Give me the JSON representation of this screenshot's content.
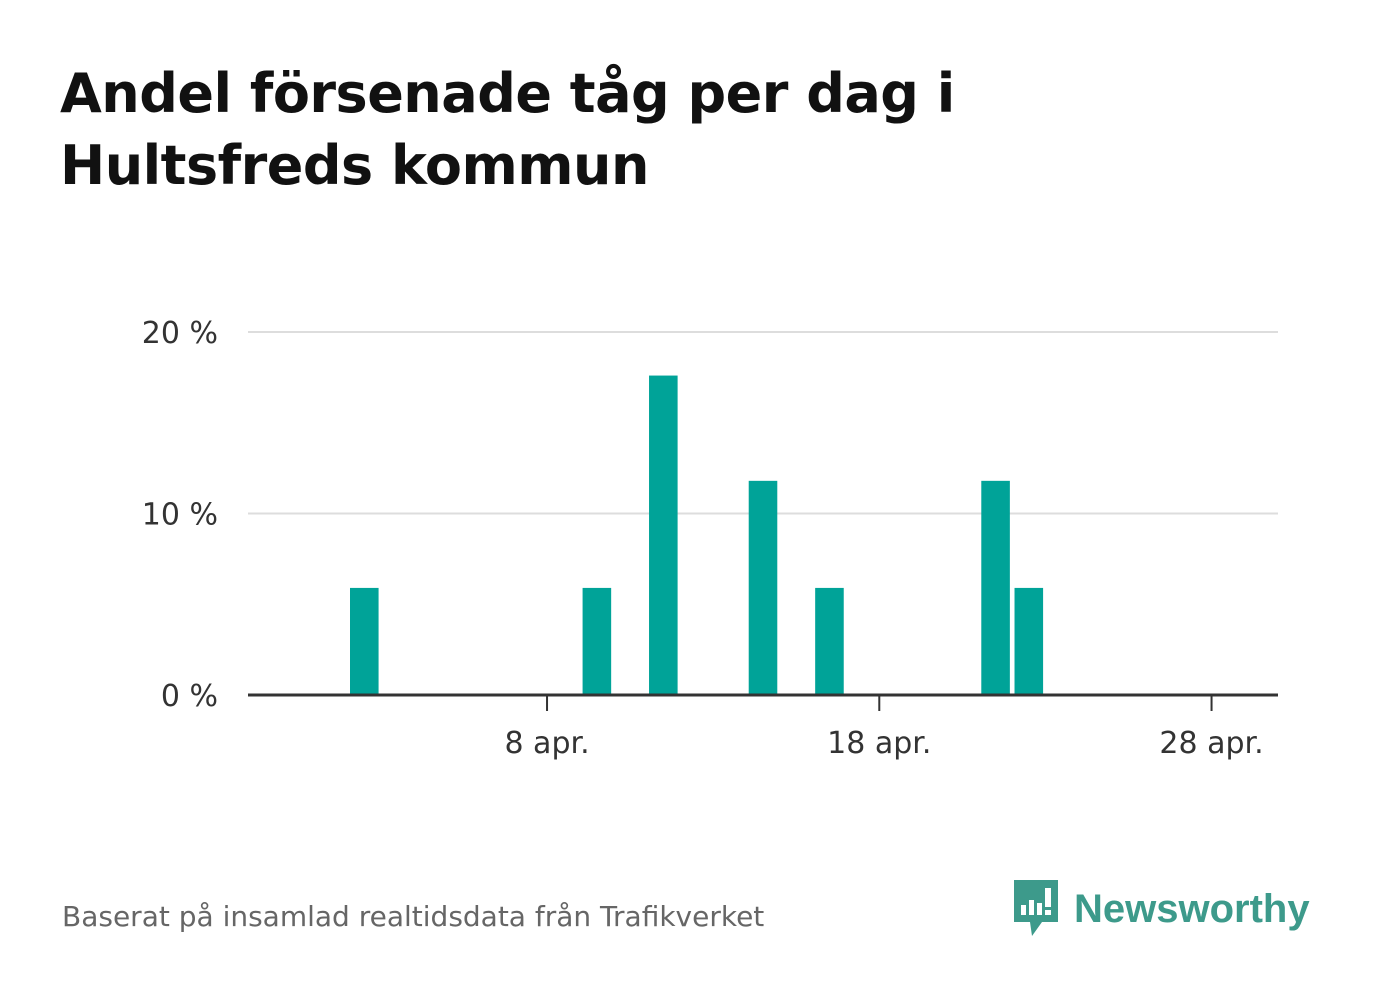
{
  "header": {
    "title": "Andel försenade tåg per dag i Hultsfreds kommun"
  },
  "footer": {
    "source": "Baserat på insamlad realtidsdata från Trafikverket",
    "brand": "Newsworthy"
  },
  "colors": {
    "bar": "#00a398",
    "brand": "#3d9a8b"
  },
  "icons": {
    "brand_logo": "newsworthy-logo-icon"
  },
  "chart_data": {
    "type": "bar",
    "x_unit": "day of April",
    "x": [
      "2026-04-02",
      "2026-04-09",
      "2026-04-11",
      "2026-04-14",
      "2026-04-16",
      "2026-04-21",
      "2026-04-22"
    ],
    "values": [
      5.9,
      5.9,
      17.6,
      11.8,
      5.9,
      11.8,
      5.9
    ],
    "ylim": [
      0,
      20
    ],
    "xlim": [
      "2026-03-30",
      "2026-04-30"
    ],
    "y_ticks": [
      {
        "value": 0,
        "label": "0 %"
      },
      {
        "value": 10,
        "label": "10 %"
      },
      {
        "value": 20,
        "label": "20 %"
      }
    ],
    "x_ticks": [
      {
        "value": "2026-04-08",
        "label": "8 apr."
      },
      {
        "value": "2026-04-18",
        "label": "18 apr."
      },
      {
        "value": "2026-04-28",
        "label": "28 apr."
      }
    ],
    "grid": true,
    "legend": "none"
  }
}
